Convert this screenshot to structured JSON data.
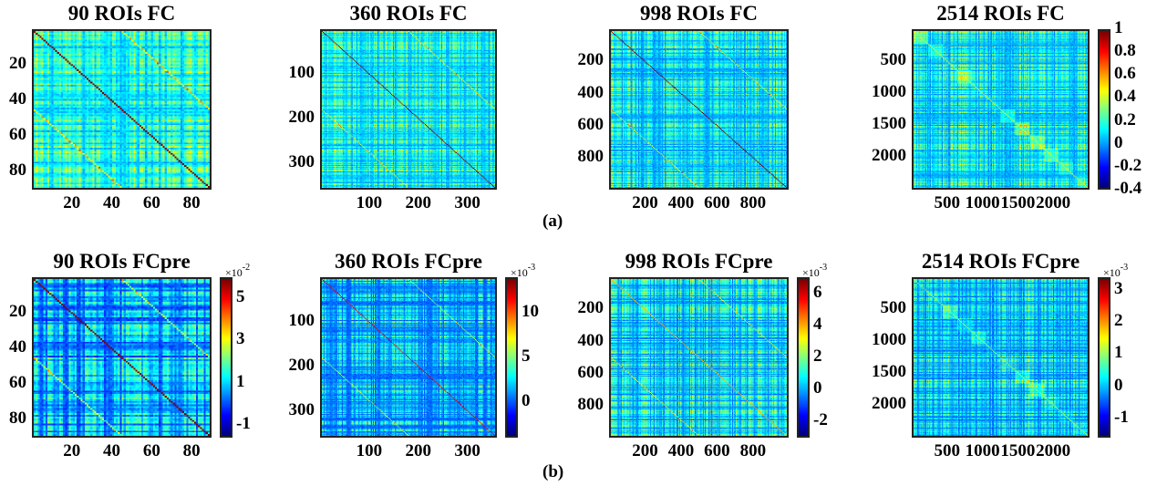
{
  "chart_data": [
    {
      "type": "heatmap",
      "id": "fc90",
      "title": "90 ROIs FC",
      "n": 90,
      "xticks": [
        20,
        40,
        60,
        80
      ],
      "yticks": [
        20,
        40,
        60,
        80
      ],
      "clim": [
        -0.4,
        1
      ],
      "colormap": "jet",
      "colorbar": false,
      "pattern": {
        "diag": 1.0,
        "offdiag_mean": 0.15,
        "homotopic_offset": 45
      }
    },
    {
      "type": "heatmap",
      "id": "fc360",
      "title": "360 ROIs FC",
      "n": 360,
      "xticks": [
        100,
        200,
        300
      ],
      "yticks": [
        100,
        200,
        300
      ],
      "clim": [
        -0.4,
        1
      ],
      "colormap": "jet",
      "colorbar": false,
      "pattern": {
        "diag": 1.0,
        "offdiag_mean": 0.12,
        "homotopic_offset": 180
      }
    },
    {
      "type": "heatmap",
      "id": "fc998",
      "title": "998 ROIs FC",
      "n": 998,
      "xticks": [
        200,
        400,
        600,
        800
      ],
      "yticks": [
        200,
        400,
        600,
        800
      ],
      "clim": [
        -0.4,
        1
      ],
      "colormap": "jet",
      "colorbar": false,
      "pattern": {
        "diag": 1.0,
        "offdiag_mean": 0.1,
        "homotopic_offset": 500
      }
    },
    {
      "type": "heatmap",
      "id": "fc2514",
      "title": "2514 ROIs FC",
      "n": 2514,
      "xticks": [
        500,
        1000,
        1500,
        2000
      ],
      "yticks": [
        500,
        1000,
        1500,
        2000
      ],
      "clim": [
        -0.4,
        1
      ],
      "colormap": "jet",
      "colorbar": true,
      "colorbar_ticks": [
        "1",
        "0.8",
        "0.6",
        "0.4",
        "0.2",
        "0",
        "-0.2",
        "-0.4"
      ],
      "colorbar_tick_values": [
        1,
        0.8,
        0.6,
        0.4,
        0.2,
        0,
        -0.2,
        -0.4
      ],
      "colorbar_exponent": "",
      "pattern": {
        "diag": 0.4,
        "offdiag_mean": 0.1,
        "blocks": true
      }
    },
    {
      "type": "heatmap",
      "id": "fcpre90",
      "title": "90 ROIs FCpre",
      "n": 90,
      "xticks": [
        20,
        40,
        60,
        80
      ],
      "yticks": [
        20,
        40,
        60,
        80
      ],
      "clim": [
        -1.6,
        6
      ],
      "colormap": "jet",
      "colorbar": true,
      "colorbar_ticks": [
        "5",
        "3",
        "1",
        "-1"
      ],
      "colorbar_tick_values": [
        5,
        3,
        1,
        -1
      ],
      "colorbar_exponent": "-2",
      "pattern": {
        "diag": 6,
        "offdiag_mean": 0.5,
        "homotopic_offset": 45
      }
    },
    {
      "type": "heatmap",
      "id": "fcpre360",
      "title": "360 ROIs FCpre",
      "n": 360,
      "xticks": [
        100,
        200,
        300
      ],
      "yticks": [
        100,
        200,
        300
      ],
      "clim": [
        -4,
        14
      ],
      "colormap": "jet",
      "colorbar": true,
      "colorbar_ticks": [
        "10",
        "5",
        "0"
      ],
      "colorbar_tick_values": [
        10,
        5,
        0
      ],
      "colorbar_exponent": "-3",
      "pattern": {
        "diag": 12,
        "offdiag_mean": 1.5,
        "homotopic_offset": 180
      }
    },
    {
      "type": "heatmap",
      "id": "fcpre998",
      "title": "998 ROIs FCpre",
      "n": 998,
      "xticks": [
        200,
        400,
        600,
        800
      ],
      "yticks": [
        200,
        400,
        600,
        800
      ],
      "clim": [
        -3,
        7
      ],
      "colormap": "jet",
      "colorbar": true,
      "colorbar_ticks": [
        "6",
        "4",
        "2",
        "0",
        "-2"
      ],
      "colorbar_tick_values": [
        6,
        4,
        2,
        0,
        -2
      ],
      "colorbar_exponent": "-3",
      "pattern": {
        "diag": 4,
        "offdiag_mean": 0.3,
        "homotopic_offset": 500
      }
    },
    {
      "type": "heatmap",
      "id": "fcpre2514",
      "title": "2514 ROIs FCpre",
      "n": 2514,
      "xticks": [
        500,
        1000,
        1500,
        2000
      ],
      "yticks": [
        500,
        1000,
        1500,
        2000
      ],
      "clim": [
        -1.6,
        3.4
      ],
      "colormap": "jet",
      "colorbar": true,
      "colorbar_ticks": [
        "3",
        "2",
        "1",
        "0",
        "-1"
      ],
      "colorbar_tick_values": [
        3,
        2,
        1,
        0,
        -1
      ],
      "colorbar_exponent": "-3",
      "pattern": {
        "diag": 1.0,
        "offdiag_mean": 0.0,
        "blocks": true
      }
    }
  ],
  "labels": {
    "row_a": "(a)",
    "row_b": "(b)"
  },
  "exp_prefix": "×10"
}
